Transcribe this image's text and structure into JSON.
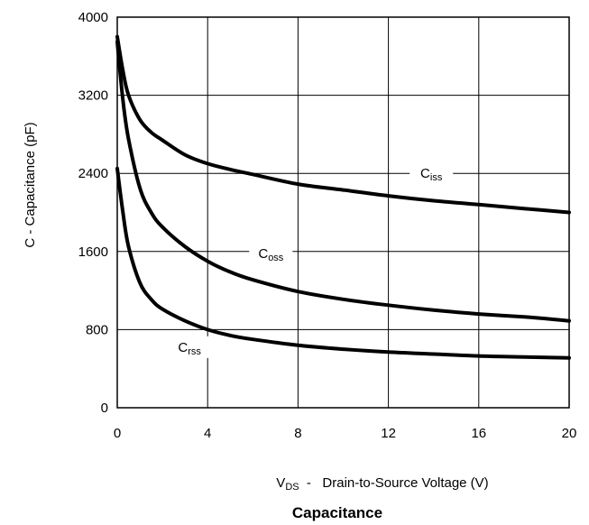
{
  "chart_data": {
    "type": "line",
    "title": "Capacitance",
    "xlabel": {
      "main": "V",
      "sub": "DS",
      "rest": "  -   Drain-to-Source Voltage (V)"
    },
    "ylabel": "C  -  Capacitance (pF)",
    "xlim": [
      0,
      20
    ],
    "ylim": [
      0,
      4000
    ],
    "xticks": [
      0,
      4,
      8,
      12,
      16,
      20
    ],
    "yticks": [
      0,
      800,
      1600,
      2400,
      3200,
      4000
    ],
    "xtick_labels": [
      "0",
      "4",
      "8",
      "12",
      "16",
      "20"
    ],
    "ytick_labels": [
      "0",
      "800",
      "1600",
      "2400",
      "3200",
      "4000"
    ],
    "grid": true,
    "legend": "none",
    "series": [
      {
        "name": "Ciss",
        "label": {
          "main": "C",
          "sub": "iss"
        },
        "x": [
          0,
          0.25,
          0.5,
          1,
          1.5,
          2,
          3,
          4,
          5,
          6,
          8,
          10,
          12,
          14,
          16,
          18,
          20
        ],
        "y": [
          3800,
          3450,
          3200,
          2950,
          2820,
          2740,
          2590,
          2500,
          2440,
          2390,
          2290,
          2230,
          2170,
          2120,
          2080,
          2040,
          2000
        ]
      },
      {
        "name": "Coss",
        "label": {
          "main": "C",
          "sub": "oss"
        },
        "x": [
          0,
          0.25,
          0.5,
          1,
          1.5,
          2,
          3,
          4,
          5,
          6,
          8,
          10,
          12,
          14,
          16,
          18,
          20
        ],
        "y": [
          3750,
          3150,
          2750,
          2250,
          2000,
          1850,
          1650,
          1500,
          1390,
          1310,
          1190,
          1110,
          1050,
          1000,
          960,
          930,
          890
        ]
      },
      {
        "name": "Crss",
        "label": {
          "main": "C",
          "sub": "rss"
        },
        "x": [
          0,
          0.25,
          0.5,
          1,
          1.5,
          2,
          3,
          4,
          5,
          6,
          8,
          10,
          12,
          14,
          16,
          18,
          20
        ],
        "y": [
          2450,
          2000,
          1650,
          1280,
          1110,
          1010,
          890,
          800,
          740,
          700,
          640,
          600,
          570,
          550,
          530,
          520,
          510
        ]
      }
    ],
    "annotations": [
      {
        "series": "Ciss",
        "x": 13.9,
        "y": 2400
      },
      {
        "series": "Coss",
        "x": 6.8,
        "y": 1580
      },
      {
        "series": "Crss",
        "x": 3.2,
        "y": 620
      }
    ]
  }
}
